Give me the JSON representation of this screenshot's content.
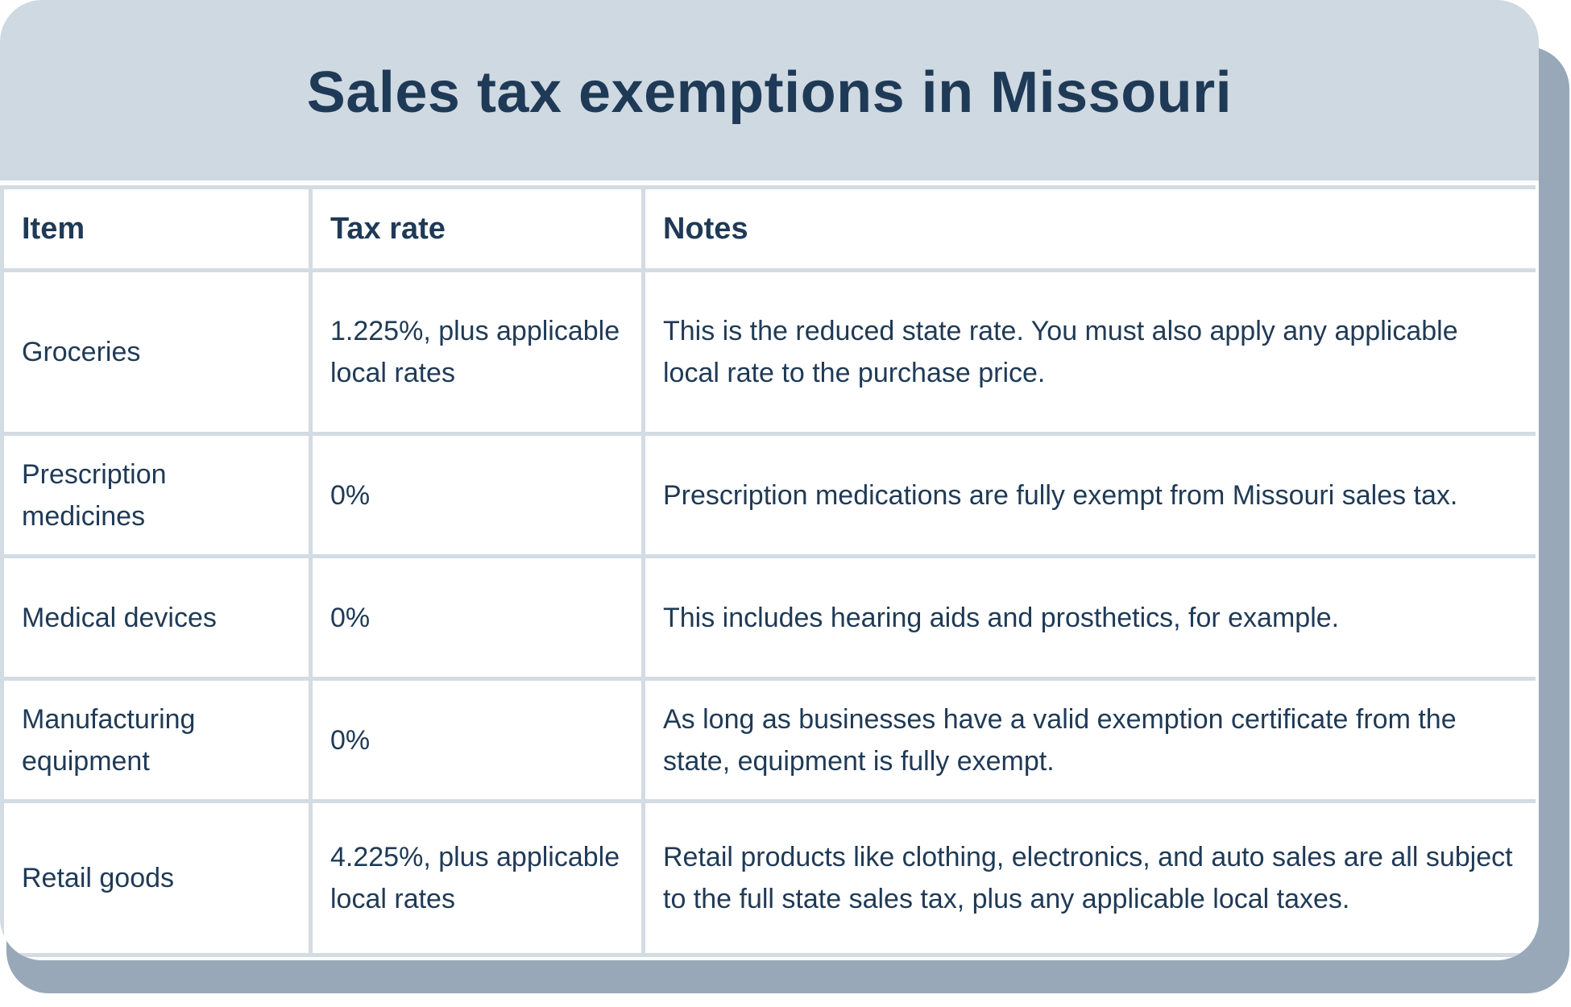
{
  "title": "Sales tax exemptions in Missouri",
  "colors": {
    "header_bg": "#cfd9e2",
    "shadow": "#98a8b8",
    "text": "#1f3a56",
    "grid_lines": "#d3dbe3",
    "body_bg": "#ffffff"
  },
  "table": {
    "headers": [
      "Item",
      "Tax rate",
      "Notes"
    ],
    "rows": [
      {
        "item": "Groceries",
        "rate": "1.225%, plus applicable local rates",
        "notes": "This is the reduced state rate. You must also apply any applicable local rate to the purchase price."
      },
      {
        "item": "Prescription medicines",
        "rate": "0%",
        "notes": "Prescription medications are fully exempt from Missouri sales tax."
      },
      {
        "item": "Medical devices",
        "rate": "0%",
        "notes": "This includes hearing aids and prosthetics, for example."
      },
      {
        "item": "Manufacturing equipment",
        "rate": "0%",
        "notes": "As long as businesses have a valid exemption certificate from the state, equipment is fully exempt."
      },
      {
        "item": "Retail goods",
        "rate": "4.225%, plus applicable local rates",
        "notes": "Retail products like clothing, electronics, and auto sales are all subject to the full state sales tax, plus any applicable local taxes."
      }
    ]
  }
}
